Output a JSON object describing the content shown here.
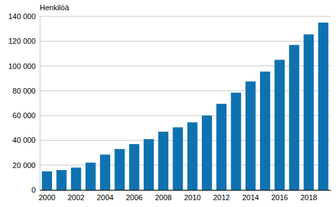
{
  "chart_data": {
    "type": "bar",
    "y_label": "Henkilöä",
    "categories": [
      "2000",
      null,
      "2002",
      null,
      "2004",
      null,
      "2006",
      null,
      "2008",
      null,
      "2010",
      null,
      "2012",
      null,
      "2014",
      null,
      "2016",
      null,
      "2018",
      null
    ],
    "values": [
      15000,
      16000,
      18000,
      22000,
      28500,
      33000,
      37000,
      41000,
      47000,
      50500,
      54500,
      60000,
      69500,
      78500,
      87500,
      95500,
      105000,
      117000,
      125500,
      135000
    ],
    "color": "#0f72b0",
    "ylim": [
      0,
      140000
    ],
    "yticks": [
      0,
      {
        "value": 20000,
        "label": "20 000"
      },
      {
        "value": 40000,
        "label": "40 000"
      },
      {
        "value": 60000,
        "label": "60 000"
      },
      {
        "value": 80000,
        "label": "80 000"
      },
      {
        "value": 100000,
        "label": "100 000"
      },
      {
        "value": 120000,
        "label": "120 000"
      },
      {
        "value": 140000,
        "label": "140 000"
      }
    ],
    "grid": true
  }
}
